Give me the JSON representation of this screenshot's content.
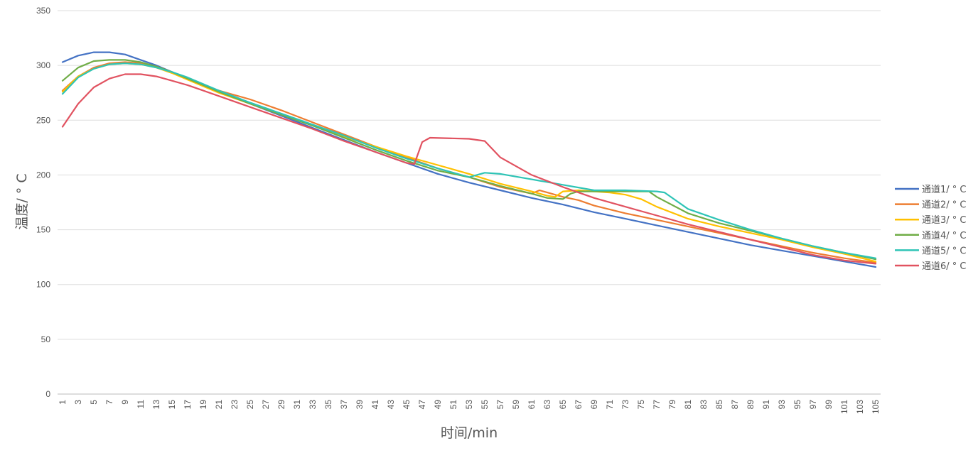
{
  "chart_data": {
    "type": "line",
    "title": "",
    "xlabel": "时间/min",
    "ylabel": "温度/ ° C",
    "ylim": [
      0,
      350
    ],
    "yticks": [
      0,
      50,
      100,
      150,
      200,
      250,
      300,
      350
    ],
    "x_range": [
      1,
      105
    ],
    "xtick_labels": [
      "1",
      "3",
      "5",
      "7",
      "9",
      "11",
      "13",
      "15",
      "17",
      "19",
      "21",
      "23",
      "25",
      "27",
      "29",
      "31",
      "33",
      "35",
      "37",
      "39",
      "41",
      "43",
      "45",
      "47",
      "49",
      "51",
      "53",
      "55",
      "57",
      "59",
      "61",
      "63",
      "65",
      "67",
      "69",
      "71",
      "73",
      "75",
      "77",
      "79",
      "81",
      "83",
      "85",
      "87",
      "89",
      "91",
      "93",
      "95",
      "97",
      "99",
      "101",
      "103",
      "105"
    ],
    "grid": "horizontal",
    "legend_position": "right",
    "series": [
      {
        "name": "通道1/ ° C",
        "color": "#4472c4",
        "x": [
          1,
          3,
          5,
          7,
          9,
          11,
          13,
          15,
          17,
          19,
          21,
          25,
          29,
          33,
          37,
          41,
          45,
          49,
          53,
          57,
          61,
          65,
          69,
          73,
          77,
          81,
          85,
          89,
          93,
          97,
          101,
          105
        ],
        "y": [
          303,
          309,
          312,
          312,
          310,
          305,
          300,
          294,
          288,
          282,
          276,
          265,
          254,
          243,
          232,
          221,
          211,
          201,
          193,
          186,
          179,
          173,
          166,
          160,
          154,
          148,
          142,
          136,
          131,
          126,
          121,
          116
        ]
      },
      {
        "name": "通道2/ ° C",
        "color": "#ed7d31",
        "x": [
          1,
          3,
          5,
          7,
          9,
          11,
          13,
          15,
          17,
          19,
          21,
          25,
          29,
          33,
          37,
          41,
          45,
          49,
          53,
          57,
          61,
          62,
          63,
          65,
          67,
          69,
          73,
          77,
          81,
          85,
          89,
          93,
          97,
          101,
          105
        ],
        "y": [
          277,
          290,
          298,
          302,
          303,
          302,
          299,
          294,
          288,
          282,
          277,
          269,
          259,
          248,
          237,
          226,
          216,
          206,
          198,
          189,
          183,
          186,
          184,
          180,
          177,
          172,
          165,
          159,
          153,
          147,
          141,
          135,
          129,
          124,
          120
        ]
      },
      {
        "name": "通道3/ ° C",
        "color": "#ffc000",
        "x": [
          1,
          3,
          5,
          7,
          9,
          11,
          13,
          15,
          17,
          19,
          21,
          25,
          29,
          33,
          37,
          41,
          45,
          49,
          53,
          57,
          61,
          63,
          64,
          65,
          67,
          69,
          71,
          73,
          75,
          77,
          81,
          85,
          89,
          93,
          97,
          101,
          105
        ],
        "y": [
          276,
          290,
          297,
          301,
          302,
          301,
          298,
          293,
          287,
          281,
          275,
          265,
          255,
          245,
          235,
          226,
          217,
          209,
          201,
          192,
          185,
          181,
          180,
          185,
          186,
          185,
          184,
          182,
          178,
          171,
          160,
          153,
          147,
          141,
          134,
          128,
          121
        ]
      },
      {
        "name": "通道4/ ° C",
        "color": "#70ad47",
        "x": [
          1,
          3,
          5,
          7,
          9,
          11,
          13,
          15,
          17,
          19,
          21,
          25,
          29,
          33,
          37,
          41,
          45,
          49,
          53,
          57,
          61,
          63,
          65,
          66,
          67,
          69,
          73,
          76,
          77,
          81,
          85,
          89,
          93,
          97,
          101,
          105
        ],
        "y": [
          286,
          298,
          304,
          305,
          305,
          303,
          299,
          294,
          288,
          282,
          276,
          265,
          255,
          245,
          234,
          223,
          213,
          204,
          198,
          190,
          183,
          179,
          178,
          183,
          185,
          185,
          185,
          185,
          180,
          165,
          156,
          149,
          142,
          135,
          129,
          123
        ]
      },
      {
        "name": "通道5/ ° C",
        "color": "#2ec4b6",
        "x": [
          1,
          3,
          5,
          7,
          9,
          11,
          13,
          15,
          17,
          19,
          21,
          25,
          29,
          33,
          37,
          41,
          45,
          49,
          53,
          55,
          57,
          61,
          65,
          69,
          73,
          77,
          78,
          81,
          85,
          89,
          93,
          97,
          101,
          105
        ],
        "y": [
          274,
          289,
          297,
          301,
          302,
          301,
          298,
          294,
          289,
          283,
          277,
          266,
          256,
          246,
          236,
          225,
          215,
          206,
          198,
          202,
          201,
          196,
          191,
          186,
          186,
          185,
          184,
          169,
          159,
          150,
          142,
          135,
          129,
          124
        ]
      },
      {
        "name": "通道6/ ° C",
        "color": "#e15260",
        "x": [
          1,
          3,
          5,
          7,
          9,
          11,
          13,
          15,
          17,
          19,
          21,
          25,
          29,
          33,
          37,
          41,
          45,
          46,
          47,
          48,
          53,
          55,
          57,
          61,
          65,
          69,
          73,
          77,
          81,
          85,
          89,
          93,
          97,
          101,
          105
        ],
        "y": [
          244,
          265,
          280,
          288,
          292,
          292,
          290,
          286,
          282,
          277,
          272,
          262,
          252,
          242,
          231,
          221,
          211,
          210,
          230,
          234,
          233,
          231,
          216,
          200,
          189,
          179,
          171,
          163,
          155,
          148,
          141,
          134,
          127,
          122,
          119
        ]
      }
    ]
  }
}
